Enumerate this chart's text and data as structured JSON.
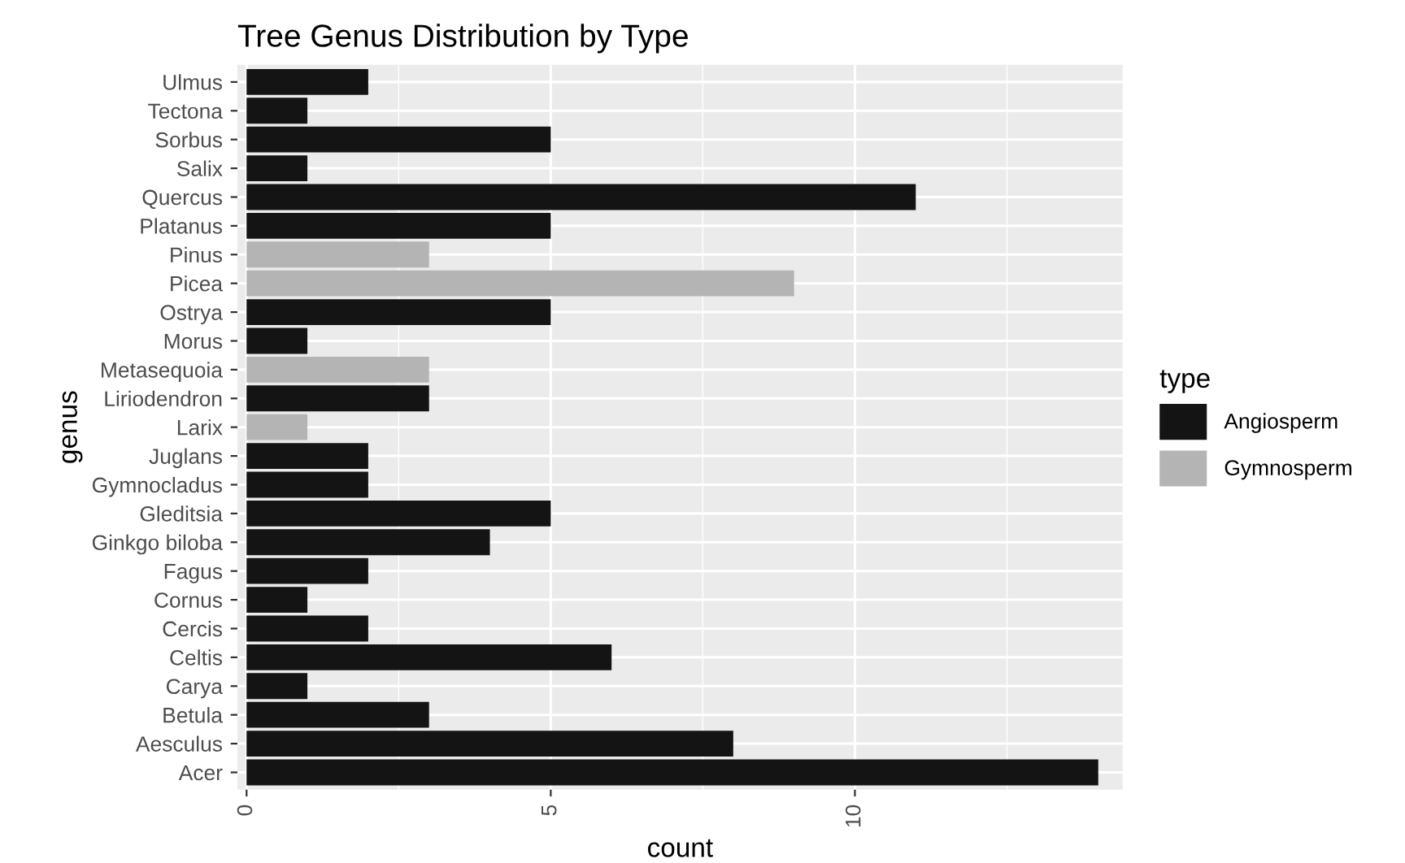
{
  "chart_data": {
    "type": "bar",
    "title": "Tree Genus Distribution by Type",
    "xlabel": "count",
    "ylabel": "genus",
    "legend_title": "type",
    "orientation": "horizontal",
    "categories": [
      "Ulmus",
      "Tectona",
      "Sorbus",
      "Salix",
      "Quercus",
      "Platanus",
      "Pinus",
      "Picea",
      "Ostrya",
      "Morus",
      "Metasequoia",
      "Liriodendron",
      "Larix",
      "Juglans",
      "Gymnocladus",
      "Gleditsia",
      "Ginkgo biloba",
      "Fagus",
      "Cornus",
      "Cercis",
      "Celtis",
      "Carya",
      "Betula",
      "Aesculus",
      "Acer"
    ],
    "series": [
      {
        "name": "Angiosperm",
        "color": "#141414",
        "values": [
          2,
          1,
          5,
          1,
          11,
          5,
          null,
          null,
          5,
          1,
          null,
          3,
          null,
          2,
          2,
          5,
          4,
          2,
          1,
          2,
          6,
          1,
          3,
          8,
          14
        ]
      },
      {
        "name": "Gymnosperm",
        "color": "#b4b4b4",
        "values": [
          null,
          null,
          null,
          null,
          null,
          null,
          3,
          9,
          null,
          null,
          3,
          null,
          1,
          null,
          null,
          null,
          null,
          null,
          null,
          null,
          null,
          null,
          null,
          null,
          null
        ]
      }
    ],
    "xlim": [
      -0.15,
      14.4
    ],
    "xticks": [
      0,
      5,
      10
    ],
    "grid": true,
    "legend": "right"
  }
}
